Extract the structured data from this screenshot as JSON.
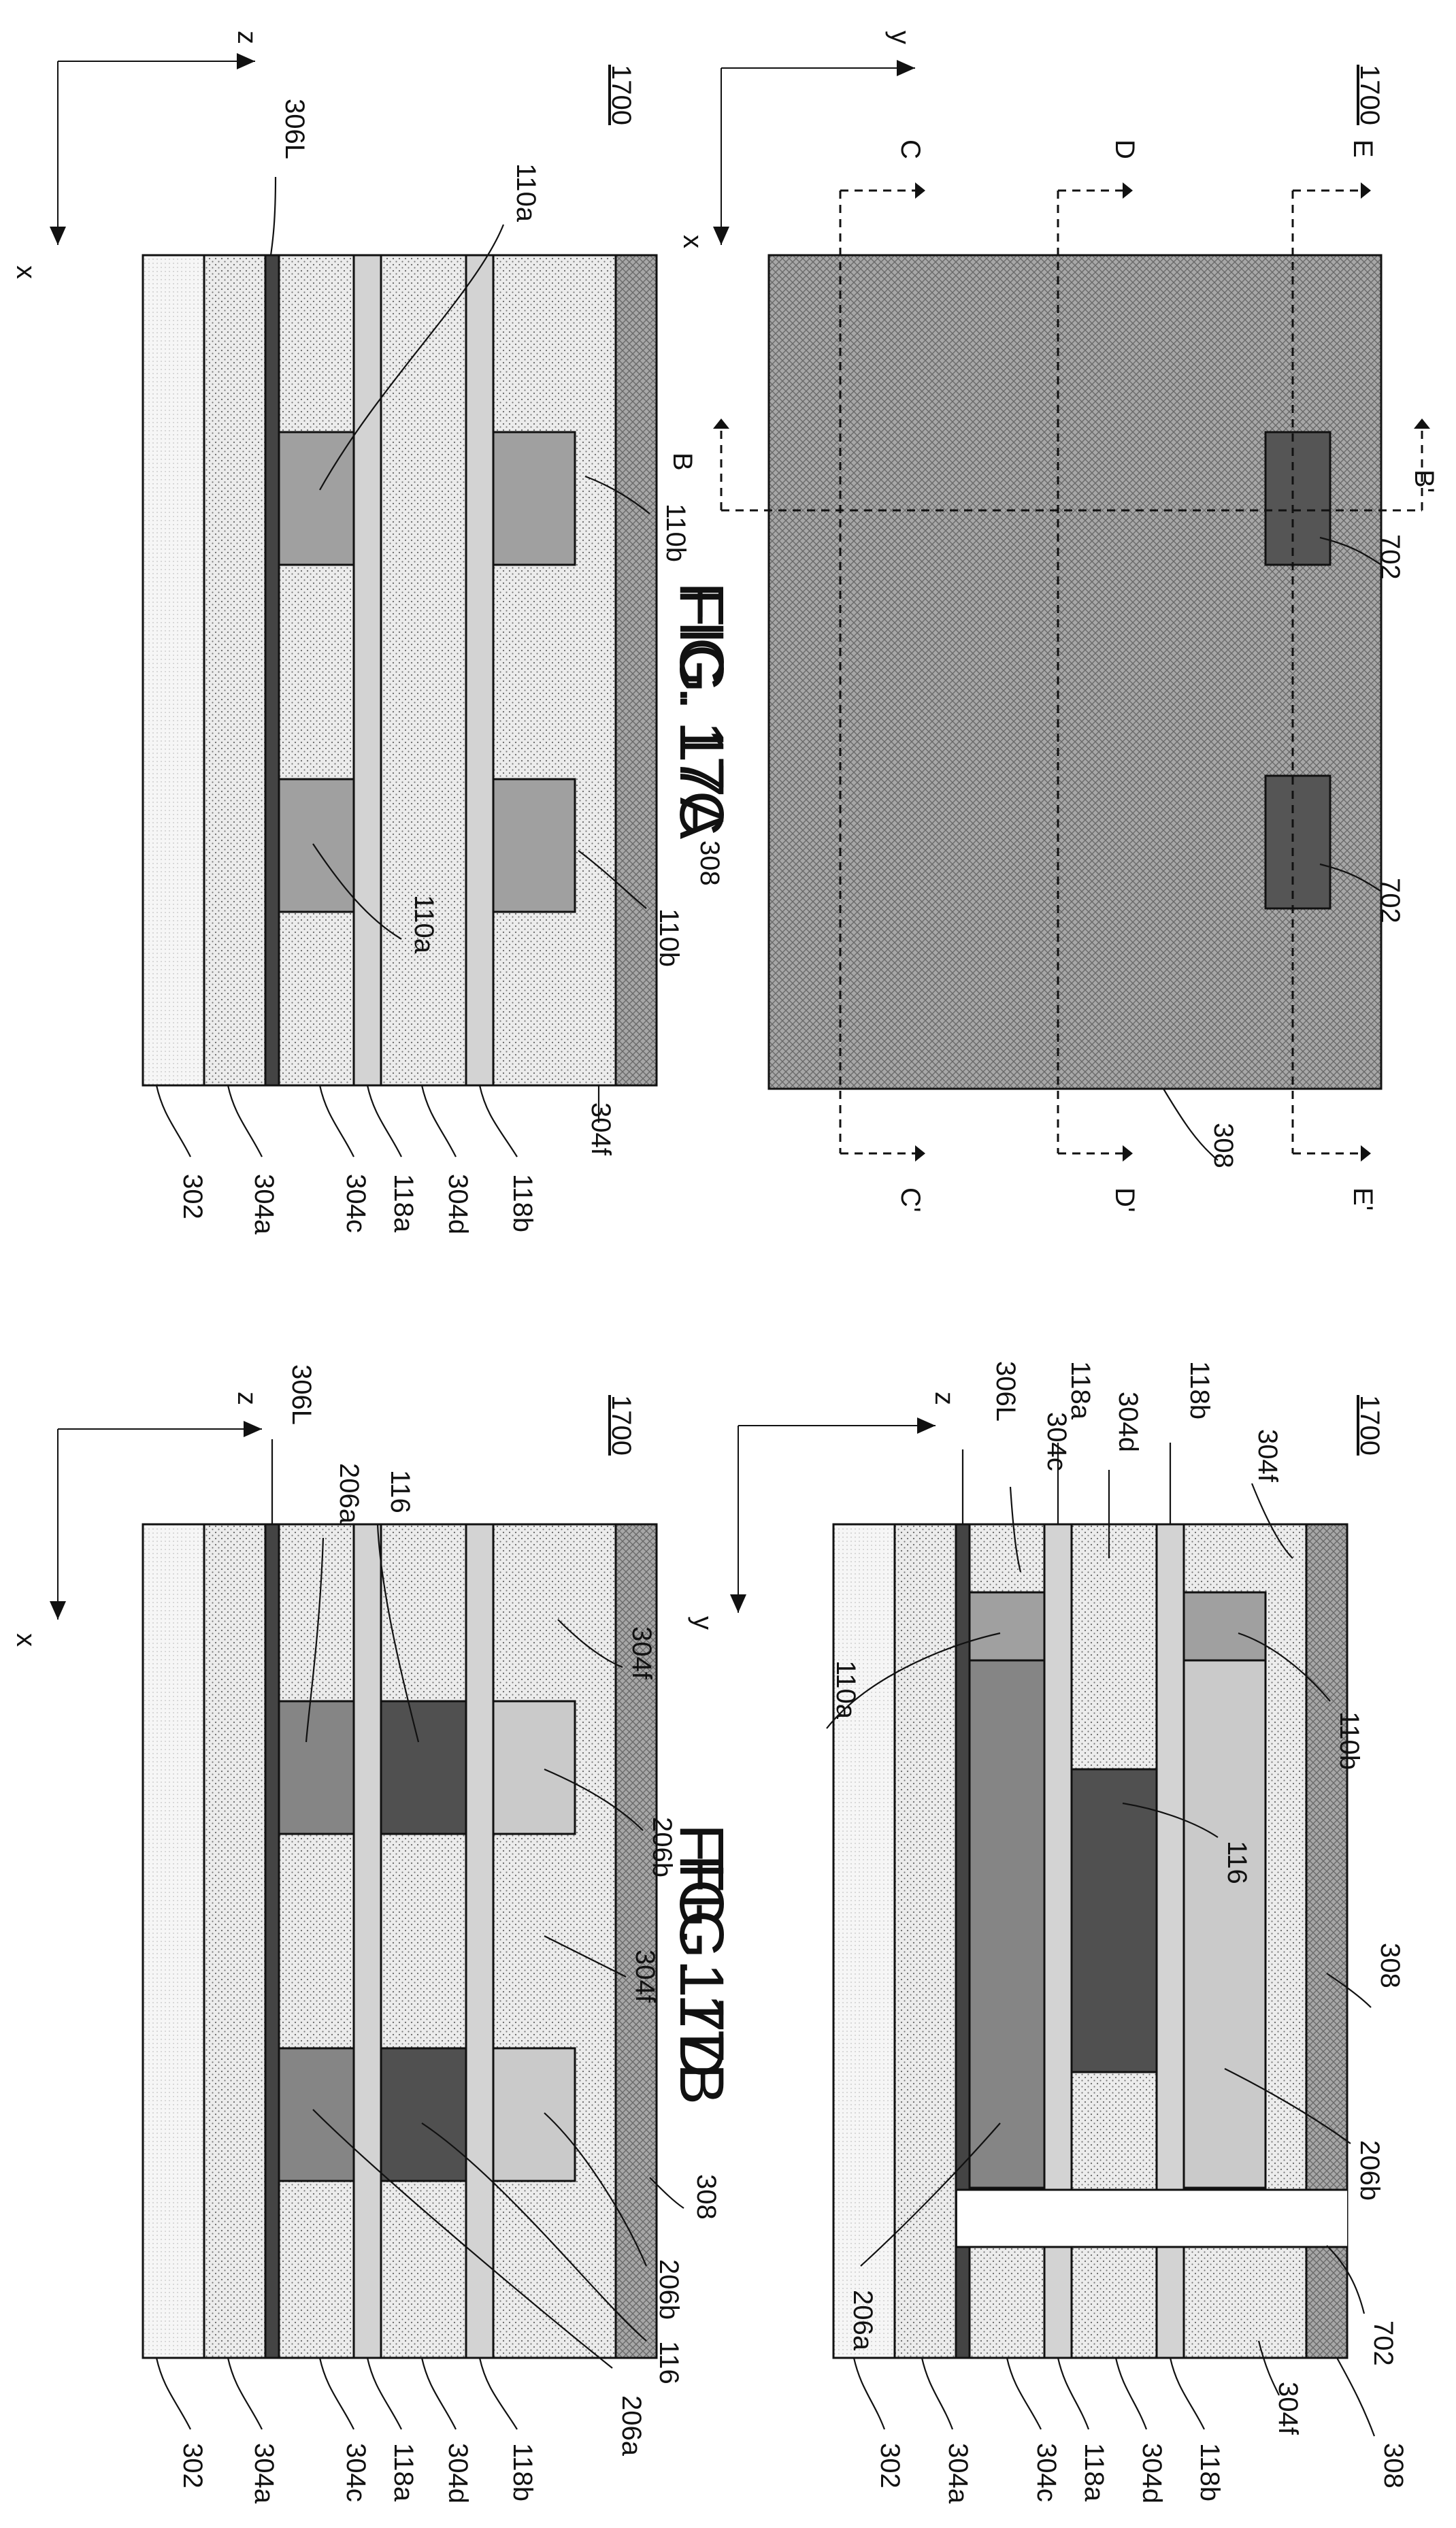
{
  "ref_numbers": {
    "fig17a": "1700",
    "fig17b": "1700",
    "fig17c": "1700",
    "fig17d": "1700"
  },
  "figure_titles": {
    "a": "FIG. 17A",
    "b": "FIG. 17B",
    "c": "FIG. 17C",
    "d": "FIG. 17D"
  },
  "axes": {
    "a": {
      "h": "y",
      "v": "x"
    },
    "b": {
      "h": "z",
      "v": "y"
    },
    "c": {
      "h": "z",
      "v": "x"
    },
    "d": {
      "h": "z",
      "v": "x"
    }
  },
  "section_markers": {
    "c": "C",
    "c_prime": "C'",
    "d": "D",
    "d_prime": "D'",
    "e": "E",
    "e_prime": "E'",
    "b": "B",
    "b_prime": "B'"
  },
  "fig17a_labels": {
    "openings": [
      "702",
      "702"
    ],
    "capping_layer": "308"
  },
  "fig17b_labels": {
    "left": [
      "306L",
      "304c",
      "118a",
      "304d",
      "118b",
      "304f"
    ],
    "right": [
      "302",
      "304a",
      "304c",
      "118a",
      "304d",
      "118b",
      "304f"
    ],
    "inner": [
      "110a",
      "110b",
      "116",
      "308",
      "206b",
      "206a",
      "702",
      "308"
    ]
  },
  "fig17c_labels": {
    "left": [
      "306L",
      "110a"
    ],
    "inner": [
      "110b",
      "308",
      "110b",
      "110a"
    ],
    "right": [
      "302",
      "304a",
      "304c",
      "118a",
      "304d",
      "118b",
      "304f"
    ]
  },
  "fig17d_labels": {
    "left": [
      "306L",
      "206a",
      "116"
    ],
    "inner": [
      "304f",
      "206b",
      "304f",
      "308",
      "206b",
      "116",
      "206a"
    ],
    "right": [
      "302",
      "304a",
      "304c",
      "118a",
      "304d",
      "118b"
    ]
  },
  "colors": {
    "dotted_fill": "#e9e9e9",
    "light_fill": "#f4f4f4",
    "crosshatch": "#a9a9a9",
    "mid_gray": "#a0a0a0",
    "metal_gray": "#858585",
    "dark_gray": "#505050",
    "light_gray": "#cacaca",
    "spacer": "#d3d3d3",
    "thin_dark": "#444444",
    "opening_dark": "#555555"
  }
}
